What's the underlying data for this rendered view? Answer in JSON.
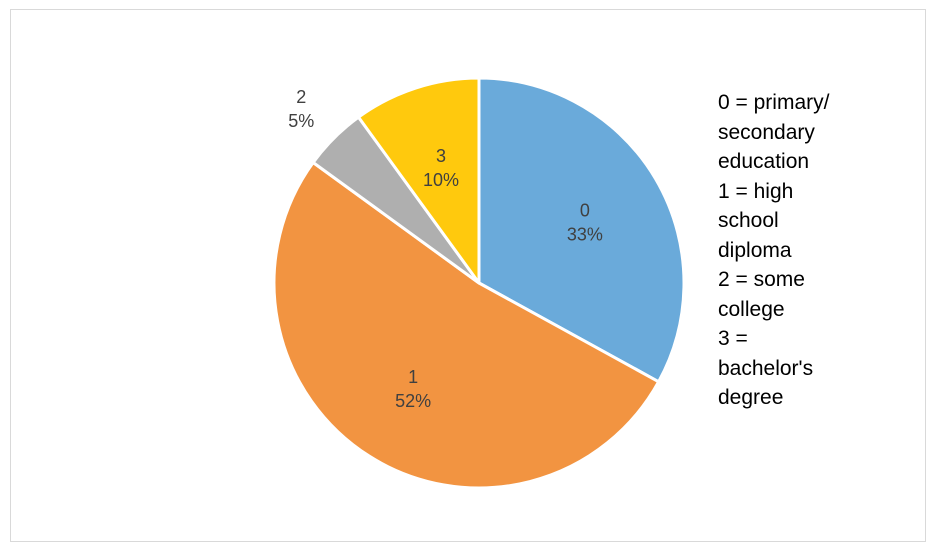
{
  "chart_data": {
    "type": "pie",
    "categories": [
      "0",
      "1",
      "2",
      "3"
    ],
    "values": [
      33,
      52,
      5,
      10
    ],
    "value_labels": [
      "33%",
      "52%",
      "5%",
      "10%"
    ],
    "colors": [
      "#6aaada",
      "#f29441",
      "#afafaf",
      "#ffc90d"
    ],
    "start_angle_deg": 0,
    "direction": "clockwise",
    "title": "",
    "legend_placement": "right",
    "legend": [
      {
        "key": "0 =",
        "lines": [
          "0 = primary/",
          "secondary",
          "education"
        ]
      },
      {
        "key": "1 =",
        "lines": [
          "1 = high",
          "school",
          "diploma"
        ]
      },
      {
        "key": "2 =",
        "lines": [
          "2 = some",
          "college"
        ]
      },
      {
        "key": "3 =",
        "lines": [
          "3 =",
          "bachelor's",
          "degree"
        ]
      }
    ]
  }
}
